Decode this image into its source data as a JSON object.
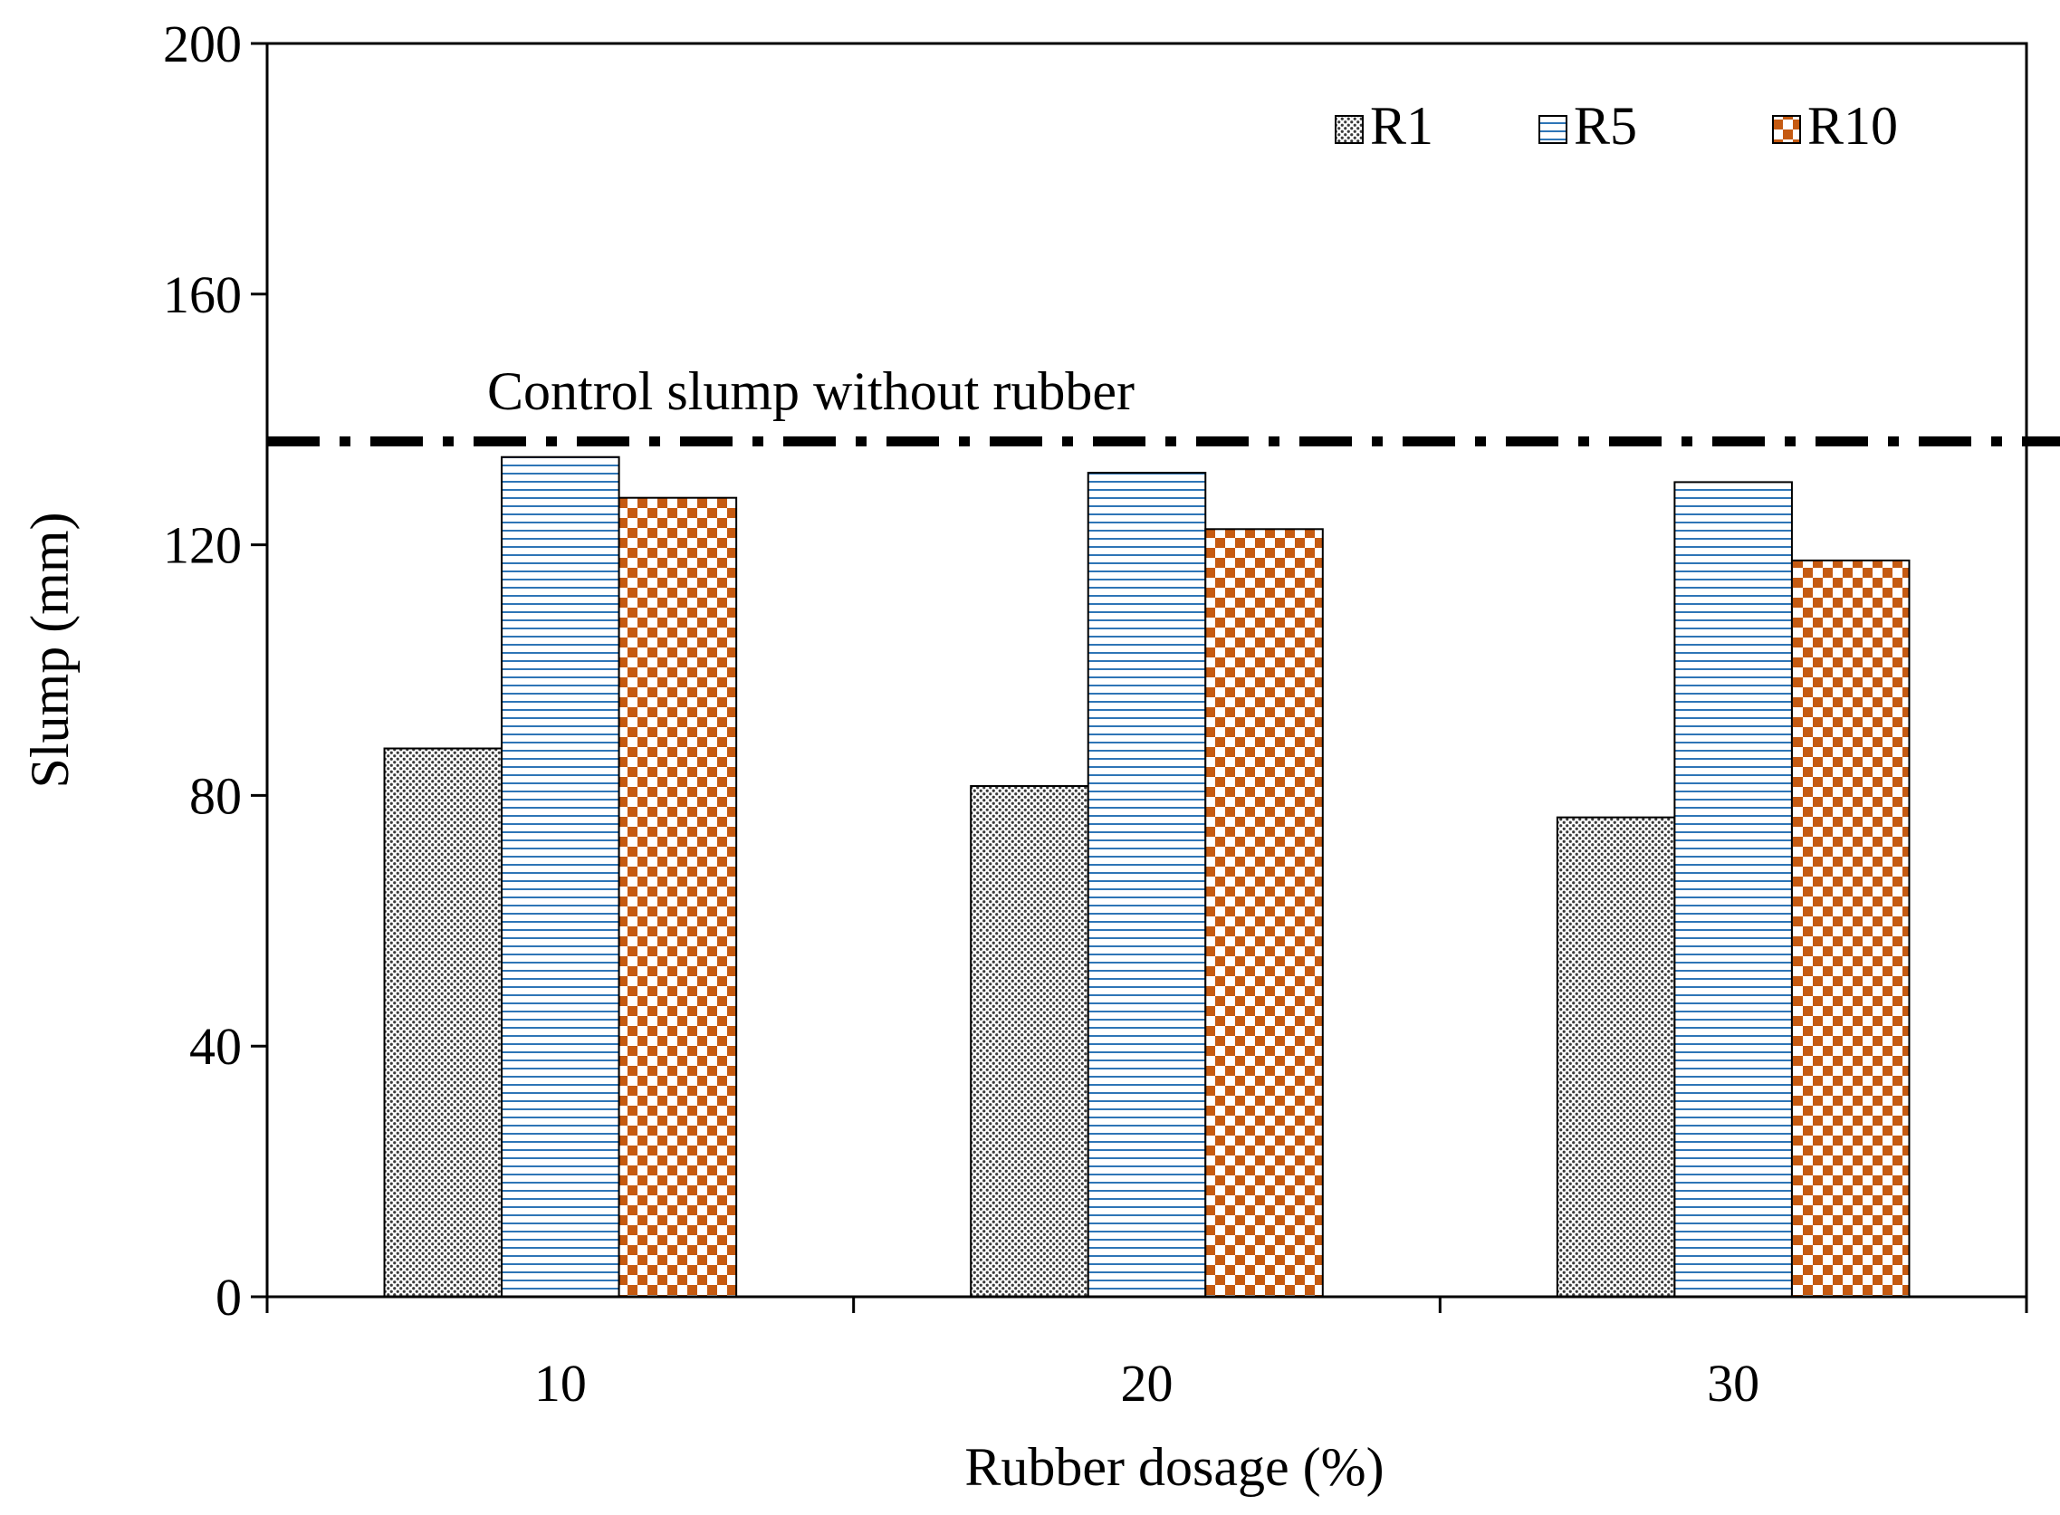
{
  "chart_data": {
    "type": "bar",
    "title": "",
    "xlabel": "Rubber dosage (%)",
    "ylabel": "Slump (mm)",
    "categories": [
      "10",
      "20",
      "30"
    ],
    "ylim": [
      0,
      200
    ],
    "yticks": [
      "0",
      "40",
      "80",
      "120",
      "160",
      "200"
    ],
    "ytick_values": [
      0,
      40,
      80,
      120,
      160,
      200
    ],
    "series": [
      {
        "name": "R1",
        "values": [
          87.5,
          81.5,
          76.5
        ],
        "color": "#555555",
        "pattern": "dense-dots"
      },
      {
        "name": "R5",
        "values": [
          134,
          131.5,
          130
        ],
        "color": "#2e75b6",
        "pattern": "horizontal-lines"
      },
      {
        "name": "R10",
        "values": [
          127.5,
          122.5,
          117.5
        ],
        "color": "#c55a11",
        "pattern": "checkerboard"
      }
    ],
    "legend_position": "top-right",
    "grid": false,
    "reference_line": {
      "label": "Control slump without rubber",
      "value": 136.5,
      "style": "dash-dot"
    }
  }
}
